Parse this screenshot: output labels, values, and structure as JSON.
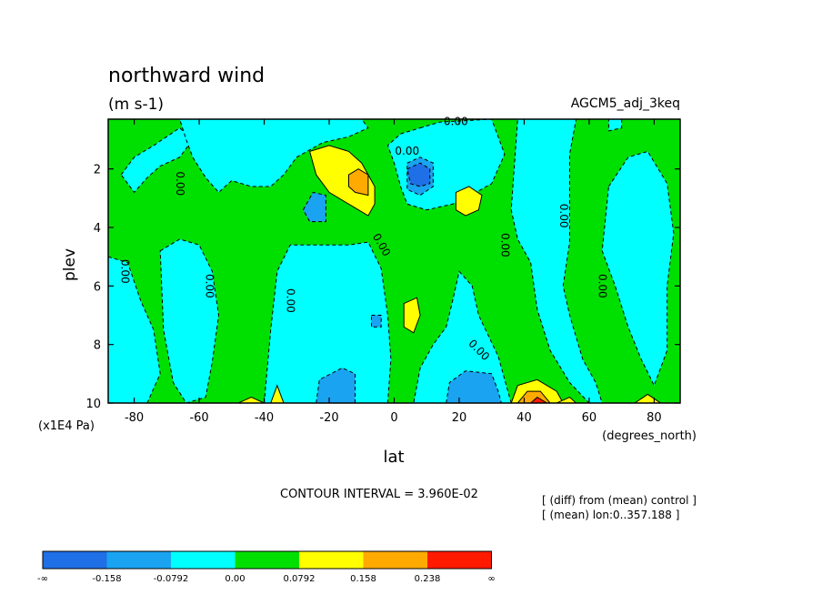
{
  "chart_data": {
    "type": "heatmap",
    "title": "northward wind",
    "units": "(m s-1)",
    "dataset_label": "AGCM5_adj_3keq",
    "xlabel": "lat",
    "xunits": "(degrees_north)",
    "ylabel": "plev",
    "yunits": "(x1E4 Pa)",
    "xlim": [
      -88,
      88
    ],
    "ylim": [
      10,
      0.3
    ],
    "x_ticks": [
      -80,
      -60,
      -40,
      -20,
      0,
      20,
      40,
      60,
      80
    ],
    "y_ticks": [
      2,
      4,
      6,
      8,
      10
    ],
    "contour_interval_text": "CONTOUR INTERVAL = 3.960E-02",
    "notes": [
      "[ (diff) from (mean) control ]",
      "[ (mean) lon:0..357.188 ]"
    ],
    "contour_labels": [
      "0.00",
      "0.00",
      "0.00",
      "0.00",
      "0.00",
      "0.00",
      "0.00",
      "0.00",
      "0.00",
      "0.00",
      "0.00"
    ],
    "colorbar": {
      "labels": [
        "-∞",
        "-0.158",
        "-0.0792",
        "0.00",
        "0.0792",
        "0.158",
        "0.238",
        "∞"
      ],
      "colors": [
        "#1f6fe6",
        "#1aa3f0",
        "#00ffff",
        "#00e000",
        "#ffff00",
        "#ffaa00",
        "#ff1a00"
      ]
    },
    "regions": [
      {
        "level": 0,
        "polys": [
          [
            -88,
            0.3,
            88,
            0.3,
            88,
            10,
            -88,
            10
          ]
        ]
      },
      {
        "level": -1,
        "polys": [
          [
            -84,
            2.2,
            -80,
            1.6,
            -74,
            1.2,
            -66,
            0.6,
            -62,
            1.0,
            -66,
            1.6,
            -72,
            1.9,
            -76,
            2.3,
            -80,
            2.8
          ],
          [
            -66,
            0.3,
            -10,
            0.3,
            -8,
            0.6,
            -14,
            0.9,
            -22,
            1.1,
            -30,
            1.6,
            -34,
            2.2,
            -38,
            2.6,
            -44,
            2.6,
            -50,
            2.4,
            -54,
            2.8,
            -58,
            2.3,
            -62,
            1.6,
            -64,
            1.0
          ],
          [
            -88,
            5.0,
            -82,
            5.2,
            -78,
            6.5,
            -74,
            7.5,
            -72,
            9.0,
            -76,
            10,
            -88,
            10
          ],
          [
            -72,
            4.8,
            -66,
            4.4,
            -60,
            4.6,
            -56,
            5.5,
            -54,
            7.0,
            -56,
            8.6,
            -58,
            9.8,
            -64,
            10,
            -68,
            9.3,
            -71,
            7.5
          ],
          [
            -40,
            10,
            -38,
            7.5,
            -36,
            5.5,
            -32,
            4.6,
            -22,
            4.6,
            -14,
            4.6,
            -8,
            4.5,
            -4,
            5.4,
            -2,
            7.0,
            -1,
            8.5,
            -2,
            10
          ],
          [
            8,
            0.6,
            14,
            0.4,
            30,
            0.3,
            34,
            1.5,
            30,
            2.5,
            22,
            3.0,
            18,
            3.2,
            10,
            3.4,
            4,
            3.2,
            2,
            2.6,
            0,
            1.8,
            -2,
            1.2,
            2,
            0.8
          ],
          [
            20,
            5.5,
            24,
            6.0,
            26,
            7.0,
            32,
            8.4,
            36,
            10,
            6,
            10,
            8,
            8.8,
            12,
            8.0,
            16,
            7.4,
            18,
            6.5
          ],
          [
            38,
            0.3,
            56,
            0.3,
            54,
            1.5,
            54,
            3.0,
            54,
            4.5,
            52,
            6.0,
            54,
            7.0,
            58,
            8.5,
            62,
            9.3,
            64,
            10,
            60,
            10,
            54,
            9.3,
            48,
            8.2,
            44,
            6.8,
            42,
            5.2,
            38,
            4.4,
            36,
            3.4
          ],
          [
            66,
            0.3,
            70,
            0.3,
            70,
            0.6,
            66,
            0.7
          ],
          [
            66,
            2.6,
            72,
            1.6,
            78,
            1.4,
            84,
            2.5,
            86,
            4.2,
            84,
            6.0,
            84,
            8.2,
            80,
            9.4,
            76,
            8.5,
            72,
            7.4,
            68,
            6.0,
            64,
            4.8
          ]
        ]
      },
      {
        "level": -2,
        "polys": [
          [
            -28,
            3.4,
            -25,
            2.8,
            -21,
            2.9,
            -21,
            3.8,
            -26,
            3.8
          ],
          [
            4,
            1.8,
            8,
            1.6,
            12,
            1.8,
            12,
            2.6,
            8,
            2.9,
            4,
            2.7
          ],
          [
            -7,
            7.0,
            -4,
            7.0,
            -4,
            7.4,
            -7,
            7.4
          ],
          [
            -24,
            10,
            -23,
            9.2,
            -16,
            8.8,
            -12,
            9.0,
            -12,
            10
          ],
          [
            16,
            10,
            17,
            9.3,
            22,
            8.9,
            30,
            9.0,
            32,
            9.6,
            33,
            10
          ]
        ]
      },
      {
        "level": -3,
        "polys": [
          [
            4,
            2.0,
            8,
            1.8,
            11,
            2.0,
            11,
            2.5,
            8,
            2.6,
            5,
            2.5
          ]
        ]
      },
      {
        "level": 1,
        "polys": [
          [
            -26,
            1.4,
            -20,
            1.2,
            -14,
            1.4,
            -10,
            1.8,
            -8,
            2.2,
            -6,
            2.6,
            -6,
            3.2,
            -8,
            3.6,
            -14,
            3.2,
            -20,
            2.8,
            -24,
            2.2
          ],
          [
            19,
            2.8,
            23,
            2.6,
            27,
            2.9,
            26,
            3.4,
            22,
            3.6,
            19,
            3.4
          ],
          [
            3,
            6.6,
            7,
            6.4,
            8,
            7.0,
            6,
            7.6,
            3,
            7.4
          ],
          [
            -48,
            10,
            -44,
            9.8,
            -40,
            10
          ],
          [
            -38,
            10,
            -36,
            9.4,
            -34,
            10
          ],
          [
            36,
            10,
            38,
            9.4,
            44,
            9.2,
            50,
            9.6,
            52,
            10
          ],
          [
            50,
            10,
            54,
            9.8,
            56,
            10
          ],
          [
            74,
            10,
            78,
            9.7,
            82,
            10
          ]
        ]
      },
      {
        "level": 2,
        "polys": [
          [
            -14,
            2.2,
            -11,
            2.0,
            -8,
            2.2,
            -8,
            2.9,
            -12,
            2.8,
            -14,
            2.6
          ],
          [
            38,
            10,
            41,
            9.6,
            45,
            9.6,
            48,
            10
          ]
        ]
      },
      {
        "level": 3,
        "polys": [
          [
            42,
            10,
            44,
            9.8,
            47,
            10
          ]
        ]
      }
    ]
  }
}
